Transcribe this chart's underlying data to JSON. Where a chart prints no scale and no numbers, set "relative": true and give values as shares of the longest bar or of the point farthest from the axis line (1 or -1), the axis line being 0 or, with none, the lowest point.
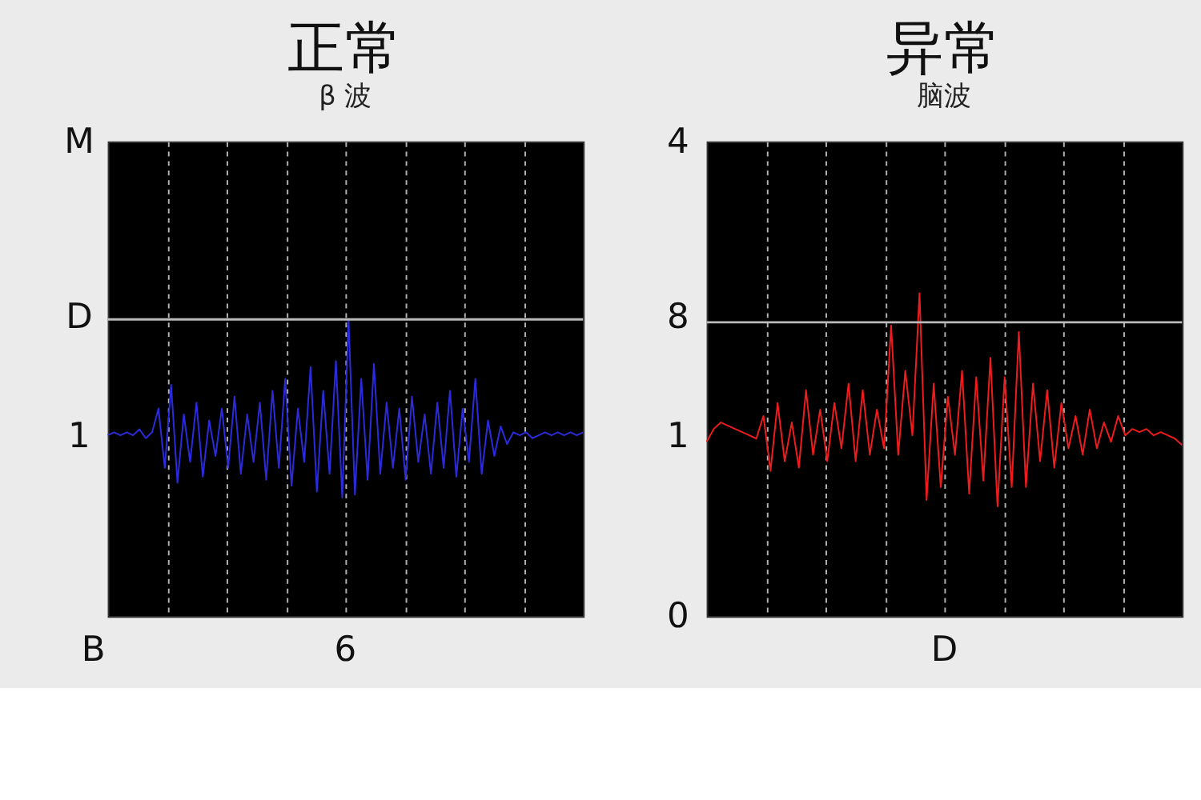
{
  "chart_data": [
    {
      "type": "line",
      "title": "正常",
      "subtitle": "β 波",
      "relative": true,
      "grid": true,
      "legend": false,
      "marker": "none",
      "line_style": "solid",
      "categories": [
        null,
        null,
        null,
        null,
        null,
        null,
        null,
        null,
        null,
        null,
        null,
        null,
        null,
        null,
        null,
        null,
        null,
        null,
        null,
        null,
        null,
        null,
        null,
        null,
        null,
        null,
        null,
        null,
        null,
        null,
        null,
        null,
        null,
        null,
        null,
        null,
        null,
        null,
        null,
        null,
        null,
        null,
        null,
        null,
        null,
        null,
        null,
        null,
        null,
        null,
        null,
        null,
        null,
        null,
        null,
        null,
        null,
        null,
        null,
        null,
        null,
        null,
        null,
        null,
        null,
        null,
        null,
        null,
        null,
        null,
        null,
        null,
        null,
        null,
        null,
        null
      ],
      "series": [
        {
          "color": "#2b2bdd",
          "values": [
            0.61,
            0.62,
            0.61,
            0.62,
            0.61,
            0.63,
            0.6,
            0.62,
            0.7,
            0.5,
            0.78,
            0.45,
            0.68,
            0.52,
            0.72,
            0.47,
            0.66,
            0.54,
            0.7,
            0.5,
            0.74,
            0.48,
            0.68,
            0.52,
            0.72,
            0.46,
            0.76,
            0.5,
            0.8,
            0.44,
            0.7,
            0.52,
            0.84,
            0.42,
            0.76,
            0.48,
            0.86,
            0.4,
            1.0,
            0.41,
            0.8,
            0.46,
            0.85,
            0.48,
            0.72,
            0.5,
            0.7,
            0.46,
            0.74,
            0.52,
            0.68,
            0.48,
            0.72,
            0.5,
            0.76,
            0.47,
            0.7,
            0.52,
            0.8,
            0.48,
            0.66,
            0.54,
            0.64,
            0.58,
            0.62,
            0.61,
            0.62,
            0.6,
            0.61,
            0.62,
            0.61,
            0.62,
            0.61,
            0.62,
            0.61,
            0.62
          ]
        }
      ],
      "ref_lines": [
        {
          "axis": "y",
          "value": 1.0,
          "color": "#bbbbbb"
        }
      ],
      "annotations": [
        "M",
        "D",
        "1",
        "B",
        "6"
      ]
    },
    {
      "type": "line",
      "title": "异常",
      "subtitle": "脑波",
      "relative": true,
      "grid": true,
      "legend": false,
      "marker": "none",
      "line_style": "solid",
      "categories": [
        null,
        null,
        null,
        null,
        null,
        null,
        null,
        null,
        null,
        null,
        null,
        null,
        null,
        null,
        null,
        null,
        null,
        null,
        null,
        null,
        null,
        null,
        null,
        null,
        null,
        null,
        null,
        null,
        null,
        null,
        null,
        null,
        null,
        null,
        null,
        null,
        null,
        null,
        null,
        null,
        null,
        null,
        null,
        null,
        null,
        null,
        null,
        null,
        null,
        null,
        null,
        null,
        null,
        null,
        null,
        null,
        null,
        null,
        null,
        null,
        null,
        null,
        null,
        null,
        null,
        null,
        null,
        null
      ],
      "series": [
        {
          "color": "#ee1c1c",
          "values": [
            0.54,
            0.58,
            0.6,
            0.59,
            0.58,
            0.57,
            0.56,
            0.55,
            0.62,
            0.45,
            0.66,
            0.48,
            0.6,
            0.46,
            0.7,
            0.5,
            0.64,
            0.48,
            0.66,
            0.52,
            0.72,
            0.48,
            0.7,
            0.5,
            0.64,
            0.52,
            0.9,
            0.5,
            0.76,
            0.56,
            1.0,
            0.36,
            0.72,
            0.4,
            0.68,
            0.5,
            0.76,
            0.38,
            0.74,
            0.42,
            0.8,
            0.34,
            0.74,
            0.4,
            0.88,
            0.4,
            0.72,
            0.48,
            0.7,
            0.46,
            0.66,
            0.52,
            0.62,
            0.5,
            0.64,
            0.52,
            0.6,
            0.54,
            0.62,
            0.56,
            0.58,
            0.57,
            0.58,
            0.56,
            0.57,
            0.56,
            0.55,
            0.53
          ]
        }
      ],
      "ref_lines": [
        {
          "axis": "y",
          "value": 0.91,
          "color": "#bbbbbb"
        }
      ],
      "annotations": [
        "4",
        "8",
        "1",
        "0",
        "D"
      ]
    }
  ]
}
